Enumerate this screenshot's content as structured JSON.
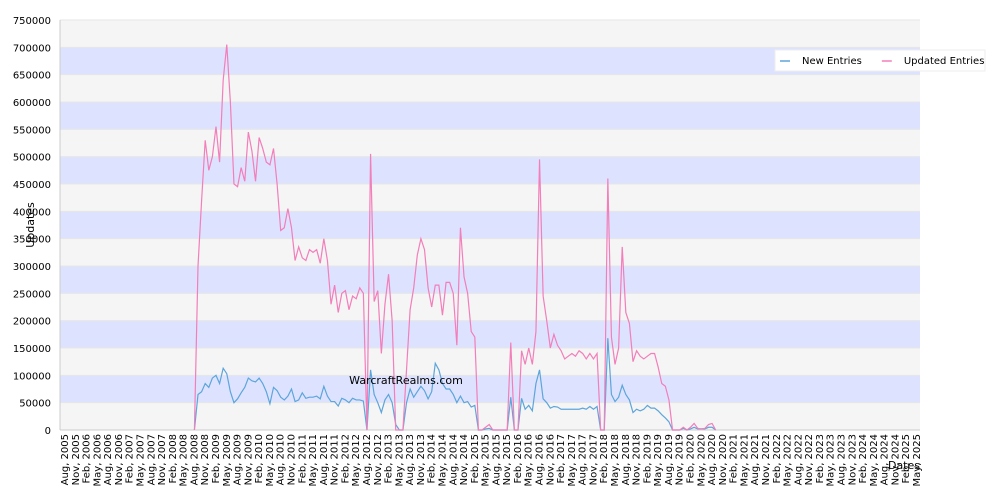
{
  "chart_data": {
    "type": "line",
    "x_label": "Dates",
    "y_label": "Updates",
    "annotation": "WarcraftRealms.com",
    "legend": "top-right",
    "grid": true,
    "ylim": [
      0,
      750000
    ],
    "yticks": [
      0,
      50000,
      100000,
      150000,
      200000,
      250000,
      300000,
      350000,
      400000,
      450000,
      500000,
      550000,
      600000,
      650000,
      700000,
      750000
    ],
    "categories": [
      "Aug, 2005",
      null,
      null,
      "Nov, 2005",
      null,
      null,
      "Feb, 2006",
      null,
      null,
      "May, 2006",
      null,
      null,
      "Aug, 2006",
      null,
      null,
      "Nov, 2006",
      null,
      null,
      "Feb, 2007",
      null,
      null,
      "May, 2007",
      null,
      null,
      "Aug, 2007",
      null,
      null,
      "Nov, 2007",
      null,
      null,
      "Feb, 2008",
      null,
      null,
      "May, 2008",
      null,
      null,
      "Aug, 2008",
      null,
      null,
      "Nov, 2008",
      null,
      null,
      "Feb, 2009",
      null,
      null,
      "May, 2009",
      null,
      null,
      "Aug, 2009",
      null,
      null,
      "Nov, 2009",
      null,
      null,
      "Feb, 2010",
      null,
      null,
      "May, 2010",
      null,
      null,
      "Aug, 2010",
      null,
      null,
      "Nov, 2010",
      null,
      null,
      "Feb, 2011",
      null,
      null,
      "May, 2011",
      null,
      null,
      "Aug, 2011",
      null,
      null,
      "Nov, 2011",
      null,
      null,
      "Feb, 2012",
      null,
      null,
      "May, 2012",
      null,
      null,
      "Aug, 2012",
      null,
      null,
      "Nov, 2012",
      null,
      null,
      "Feb, 2013",
      null,
      null,
      "May, 2013",
      null,
      null,
      "Aug, 2013",
      null,
      null,
      "Nov, 2013",
      null,
      null,
      "Feb, 2014",
      null,
      null,
      "May, 2014",
      null,
      null,
      "Aug, 2014",
      null,
      null,
      "Nov, 2014",
      null,
      null,
      "Feb, 2015",
      null,
      null,
      "May, 2015",
      null,
      null,
      "Aug, 2015",
      null,
      null,
      "Nov, 2015",
      null,
      null,
      "Feb, 2016",
      null,
      null,
      "May, 2016",
      null,
      null,
      "Aug, 2016",
      null,
      null,
      "Nov, 2016",
      null,
      null,
      "Feb, 2017",
      null,
      null,
      "May, 2017",
      null,
      null,
      "Aug, 2017",
      null,
      null,
      "Nov, 2017",
      null,
      null,
      "Feb, 2018",
      null,
      null,
      "May, 2018",
      null,
      null,
      "Aug, 2018",
      null,
      null,
      "Nov, 2018",
      null,
      null,
      "Feb, 2019",
      null,
      null,
      "May, 2019",
      null,
      null,
      "Aug, 2019",
      null,
      null,
      "Nov, 2019",
      null,
      null,
      "Feb, 2020",
      null,
      null,
      "May, 2020",
      null,
      null,
      "Aug, 2020",
      null,
      null,
      "Nov, 2020",
      null,
      null,
      "Feb, 2021",
      null,
      null,
      "May, 2021",
      null,
      null,
      "Aug, 2021",
      null,
      null,
      "Nov, 2021",
      null,
      null,
      "Feb, 2022",
      null,
      null,
      "May, 2022",
      null,
      null,
      "Aug, 2022",
      null,
      null,
      "Nov, 2022",
      null,
      null,
      "Feb, 2023",
      null,
      null,
      "May, 2023",
      null,
      null,
      "Aug, 2023",
      null,
      null,
      "Nov, 2023",
      null,
      null,
      "Feb, 2024",
      null,
      null,
      "May, 2024",
      null,
      null,
      "Aug, 2024",
      null,
      null,
      "Nov, 2024",
      null,
      null,
      "Feb, 2025",
      null,
      null,
      "May, 2025"
    ],
    "series": [
      {
        "name": "New Entries",
        "color": "#5da5da",
        "values": [
          null,
          null,
          null,
          null,
          null,
          null,
          null,
          null,
          null,
          null,
          null,
          null,
          null,
          null,
          null,
          null,
          null,
          null,
          null,
          null,
          null,
          null,
          null,
          null,
          null,
          null,
          null,
          null,
          null,
          null,
          null,
          null,
          null,
          null,
          null,
          null,
          0,
          65000,
          70000,
          85000,
          78000,
          95000,
          100000,
          85000,
          113000,
          103000,
          70000,
          50000,
          57000,
          68000,
          78000,
          95000,
          90000,
          88000,
          95000,
          85000,
          70000,
          48000,
          78000,
          72000,
          60000,
          55000,
          62000,
          75000,
          52000,
          55000,
          68000,
          58000,
          60000,
          60000,
          62000,
          57000,
          80000,
          62000,
          52000,
          52000,
          44000,
          58000,
          55000,
          50000,
          58000,
          55000,
          55000,
          53000,
          0,
          110000,
          65000,
          50000,
          32000,
          55000,
          65000,
          50000,
          10000,
          0,
          0,
          50000,
          75000,
          60000,
          70000,
          80000,
          72000,
          57000,
          70000,
          122000,
          110000,
          85000,
          75000,
          75000,
          65000,
          50000,
          62000,
          50000,
          52000,
          42000,
          45000,
          0,
          0,
          2000,
          3000,
          0,
          0,
          0,
          0,
          0,
          60000,
          0,
          0,
          58000,
          38000,
          45000,
          35000,
          85000,
          110000,
          57000,
          50000,
          40000,
          43000,
          42000,
          38000,
          38000,
          38000,
          38000,
          38000,
          38000,
          40000,
          38000,
          43000,
          38000,
          43000,
          0,
          0,
          168000,
          65000,
          52000,
          60000,
          82000,
          65000,
          55000,
          32000,
          38000,
          35000,
          38000,
          45000,
          40000,
          40000,
          35000,
          28000,
          22000,
          15000,
          0,
          0,
          0,
          3000,
          0,
          2000,
          5000,
          2000,
          2000,
          2000,
          5000,
          5000,
          0,
          null,
          null,
          null,
          null,
          null,
          null,
          null,
          null,
          null,
          null,
          null,
          null,
          null,
          null,
          null,
          null,
          null,
          null,
          null,
          null,
          null,
          null,
          null,
          null,
          null,
          null,
          null,
          null,
          null,
          null,
          null,
          null,
          null,
          null,
          null,
          null,
          null,
          null,
          null,
          null,
          null,
          null,
          null,
          null,
          null,
          null,
          null,
          null,
          null,
          null,
          null,
          null,
          null,
          null,
          null,
          null
        ]
      },
      {
        "name": "Updated Entries",
        "color": "#f27eba",
        "values": [
          null,
          null,
          null,
          null,
          null,
          null,
          null,
          null,
          null,
          null,
          null,
          null,
          null,
          null,
          null,
          null,
          null,
          null,
          null,
          null,
          null,
          null,
          null,
          null,
          null,
          null,
          null,
          null,
          null,
          null,
          null,
          null,
          null,
          null,
          null,
          null,
          0,
          300000,
          420000,
          530000,
          475000,
          500000,
          555000,
          490000,
          640000,
          705000,
          600000,
          450000,
          445000,
          480000,
          455000,
          545000,
          510000,
          455000,
          535000,
          515000,
          490000,
          485000,
          515000,
          450000,
          365000,
          370000,
          405000,
          370000,
          310000,
          335000,
          315000,
          310000,
          330000,
          325000,
          330000,
          305000,
          350000,
          310000,
          230000,
          265000,
          215000,
          250000,
          255000,
          220000,
          245000,
          240000,
          260000,
          250000,
          0,
          505000,
          235000,
          255000,
          140000,
          230000,
          285000,
          200000,
          0,
          0,
          0,
          110000,
          220000,
          260000,
          320000,
          350000,
          330000,
          260000,
          225000,
          265000,
          265000,
          210000,
          270000,
          270000,
          250000,
          155000,
          370000,
          280000,
          250000,
          180000,
          170000,
          0,
          0,
          5000,
          10000,
          0,
          0,
          0,
          0,
          0,
          160000,
          0,
          0,
          145000,
          120000,
          150000,
          120000,
          180000,
          495000,
          245000,
          200000,
          150000,
          175000,
          155000,
          145000,
          130000,
          135000,
          140000,
          135000,
          145000,
          140000,
          130000,
          140000,
          130000,
          140000,
          0,
          0,
          460000,
          170000,
          120000,
          150000,
          335000,
          215000,
          195000,
          125000,
          145000,
          135000,
          130000,
          135000,
          140000,
          140000,
          115000,
          85000,
          80000,
          55000,
          0,
          0,
          0,
          5000,
          0,
          5000,
          12000,
          3000,
          2000,
          3000,
          10000,
          12000,
          0,
          null,
          null,
          null,
          null,
          null,
          null,
          null,
          null,
          null,
          null,
          null,
          null,
          null,
          null,
          null,
          null,
          null,
          null,
          null,
          null,
          null,
          null,
          null,
          null,
          null,
          null,
          null,
          null,
          null,
          null,
          null,
          null,
          null,
          null,
          null,
          null,
          null,
          null,
          null,
          null,
          null,
          null,
          null,
          null,
          null,
          null,
          null,
          null,
          null,
          null,
          null,
          null,
          null,
          null,
          null,
          null
        ]
      }
    ]
  }
}
